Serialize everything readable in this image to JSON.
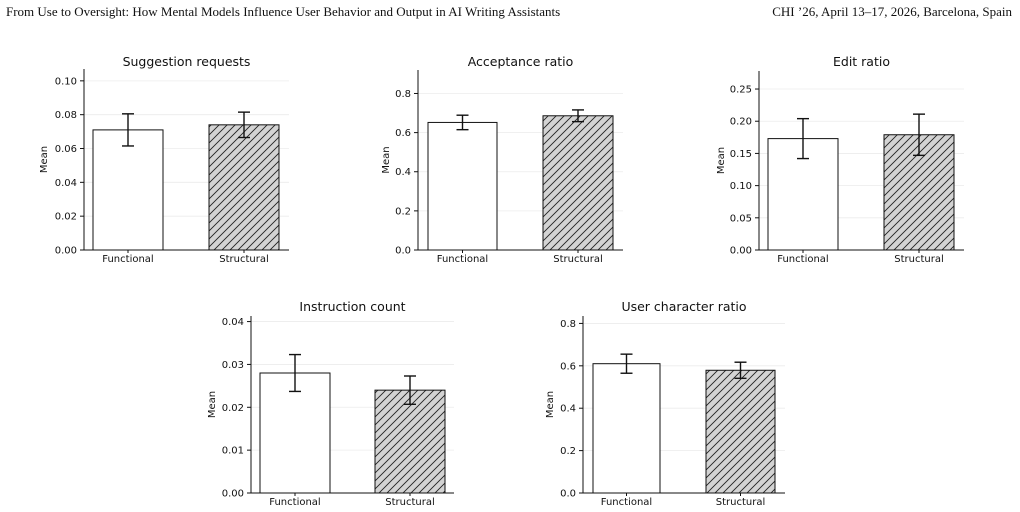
{
  "header": {
    "left": "From Use to Oversight: How Mental Models Influence User Behavior and Output in AI Writing Assistants",
    "right": "CHI ’26, April 13–17, 2026, Barcelona, Spain"
  },
  "colors": {
    "functional_fill": "#ffffff",
    "structural_fill": "#d3d3d3",
    "edge": "#111111",
    "grid": "#ececec"
  },
  "chart_data": [
    {
      "type": "bar",
      "title": "Suggestion requests",
      "ylabel": "Mean",
      "categories": [
        "Functional",
        "Structural"
      ],
      "values": [
        0.071,
        0.074
      ],
      "error": [
        0.0095,
        0.0075
      ],
      "ylim": [
        0,
        0.107
      ],
      "yticks": [
        0.0,
        0.02,
        0.04,
        0.06,
        0.08,
        0.1
      ],
      "ytick_labels": [
        "0.00",
        "0.02",
        "0.04",
        "0.06",
        "0.08",
        "0.10"
      ],
      "hatch": [
        false,
        true
      ],
      "grid": true
    },
    {
      "type": "bar",
      "title": "Acceptance ratio",
      "ylabel": "Mean",
      "categories": [
        "Functional",
        "Structural"
      ],
      "values": [
        0.652,
        0.686
      ],
      "error": [
        0.037,
        0.03
      ],
      "ylim": [
        0,
        0.92
      ],
      "yticks": [
        0.0,
        0.2,
        0.4,
        0.6,
        0.8
      ],
      "ytick_labels": [
        "0.0",
        "0.2",
        "0.4",
        "0.6",
        "0.8"
      ],
      "hatch": [
        false,
        true
      ],
      "grid": true
    },
    {
      "type": "bar",
      "title": "Edit ratio",
      "ylabel": "Mean",
      "categories": [
        "Functional",
        "Structural"
      ],
      "values": [
        0.173,
        0.179
      ],
      "error": [
        0.031,
        0.032
      ],
      "ylim": [
        0,
        0.278
      ],
      "yticks": [
        0.0,
        0.05,
        0.1,
        0.15,
        0.2,
        0.25
      ],
      "ytick_labels": [
        "0.00",
        "0.05",
        "0.10",
        "0.15",
        "0.20",
        "0.25"
      ],
      "hatch": [
        false,
        true
      ],
      "grid": true
    },
    {
      "type": "bar",
      "title": "Instruction count",
      "ylabel": "Mean",
      "categories": [
        "Functional",
        "Structural"
      ],
      "values": [
        0.028,
        0.024
      ],
      "error": [
        0.0043,
        0.0033
      ],
      "ylim": [
        0,
        0.0413
      ],
      "yticks": [
        0.0,
        0.01,
        0.02,
        0.03,
        0.04
      ],
      "ytick_labels": [
        "0.00",
        "0.01",
        "0.02",
        "0.03",
        "0.04"
      ],
      "hatch": [
        false,
        true
      ],
      "grid": true
    },
    {
      "type": "bar",
      "title": "User character ratio",
      "ylabel": "Mean",
      "categories": [
        "Functional",
        "Structural"
      ],
      "values": [
        0.61,
        0.579
      ],
      "error": [
        0.045,
        0.038
      ],
      "ylim": [
        0,
        0.835
      ],
      "yticks": [
        0.0,
        0.2,
        0.4,
        0.6,
        0.8
      ],
      "ytick_labels": [
        "0.0",
        "0.2",
        "0.4",
        "0.6",
        "0.8"
      ],
      "hatch": [
        false,
        true
      ],
      "grid": true
    }
  ]
}
